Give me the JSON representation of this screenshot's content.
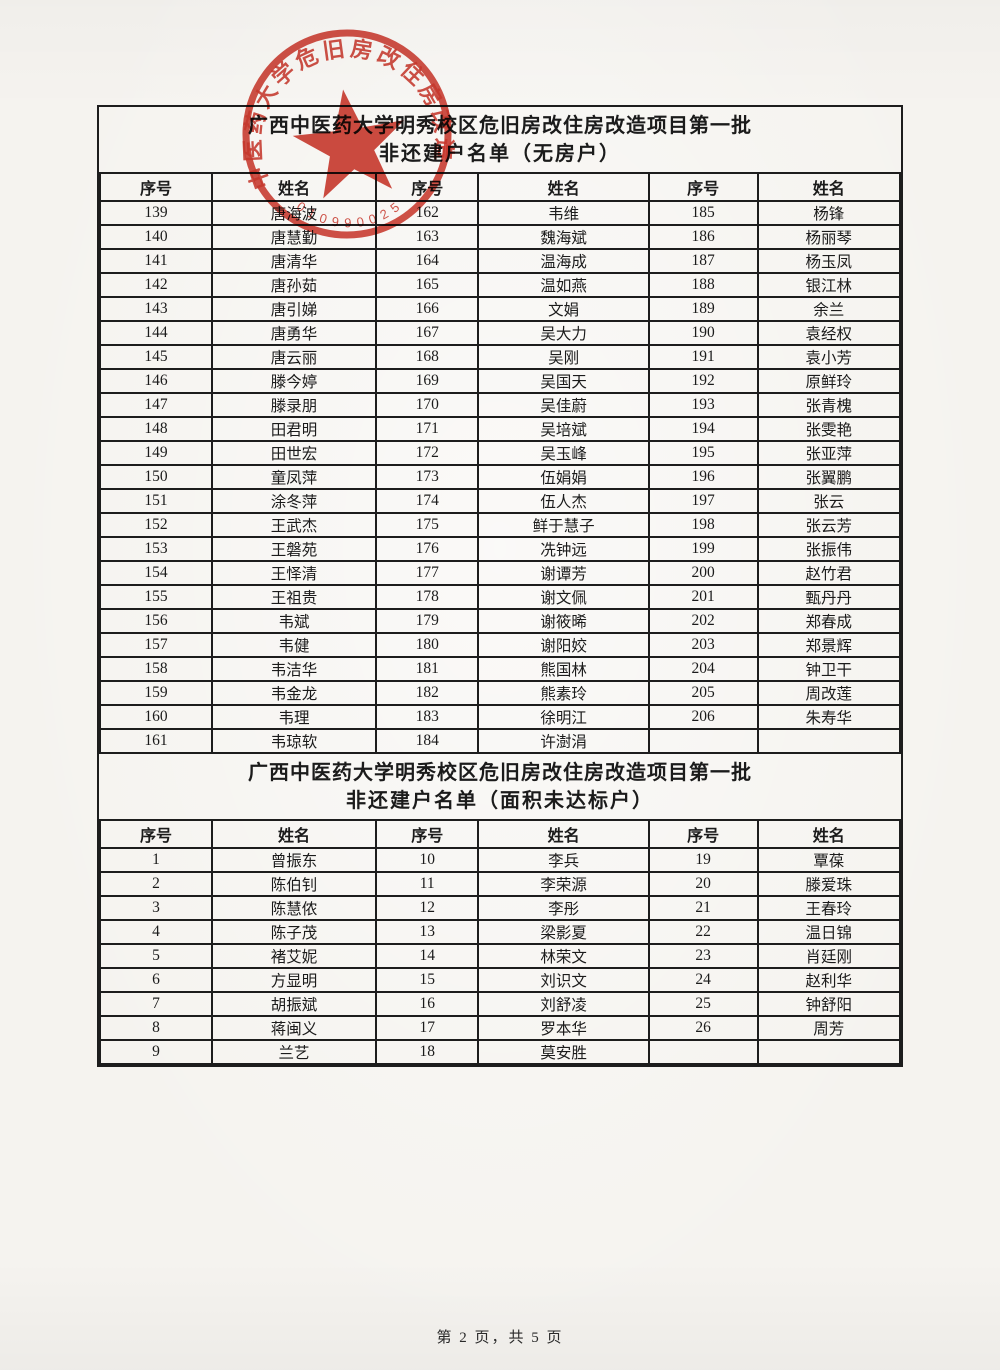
{
  "document": {
    "footer_text": "第 2 页，共 5 页"
  },
  "stamp": {
    "arc_text": "中医药大学危旧房改住房改造",
    "serial_digits": "010990025",
    "color": "#c8281c"
  },
  "section1": {
    "title_line1": "广西中医药大学明秀校区危旧房改住房改造项目第一批",
    "title_line2": "非还建户名单（无房户）",
    "col_headers": [
      "序号",
      "姓名",
      "序号",
      "姓名",
      "序号",
      "姓名"
    ],
    "rows": [
      [
        "139",
        "唐海波",
        "162",
        "韦维",
        "185",
        "杨锋"
      ],
      [
        "140",
        "唐慧勤",
        "163",
        "魏海斌",
        "186",
        "杨丽琴"
      ],
      [
        "141",
        "唐清华",
        "164",
        "温海成",
        "187",
        "杨玉凤"
      ],
      [
        "142",
        "唐孙茹",
        "165",
        "温如燕",
        "188",
        "银江林"
      ],
      [
        "143",
        "唐引娣",
        "166",
        "文娟",
        "189",
        "余兰"
      ],
      [
        "144",
        "唐勇华",
        "167",
        "吴大力",
        "190",
        "袁经权"
      ],
      [
        "145",
        "唐云丽",
        "168",
        "吴刚",
        "191",
        "袁小芳"
      ],
      [
        "146",
        "滕今婷",
        "169",
        "吴国天",
        "192",
        "原鲜玲"
      ],
      [
        "147",
        "滕录朋",
        "170",
        "吴佳蔚",
        "193",
        "张青槐"
      ],
      [
        "148",
        "田君明",
        "171",
        "吴培斌",
        "194",
        "张雯艳"
      ],
      [
        "149",
        "田世宏",
        "172",
        "吴玉峰",
        "195",
        "张亚萍"
      ],
      [
        "150",
        "童凤萍",
        "173",
        "伍娟娟",
        "196",
        "张翼鹏"
      ],
      [
        "151",
        "涂冬萍",
        "174",
        "伍人杰",
        "197",
        "张云"
      ],
      [
        "152",
        "王武杰",
        "175",
        "鲜于慧子",
        "198",
        "张云芳"
      ],
      [
        "153",
        "王磐苑",
        "176",
        "冼钟远",
        "199",
        "张振伟"
      ],
      [
        "154",
        "王怿清",
        "177",
        "谢谭芳",
        "200",
        "赵竹君"
      ],
      [
        "155",
        "王祖贵",
        "178",
        "谢文佩",
        "201",
        "甄丹丹"
      ],
      [
        "156",
        "韦斌",
        "179",
        "谢筱晞",
        "202",
        "郑春成"
      ],
      [
        "157",
        "韦健",
        "180",
        "谢阳姣",
        "203",
        "郑景辉"
      ],
      [
        "158",
        "韦洁华",
        "181",
        "熊国林",
        "204",
        "钟卫干"
      ],
      [
        "159",
        "韦金龙",
        "182",
        "熊素玲",
        "205",
        "周改莲"
      ],
      [
        "160",
        "韦理",
        "183",
        "徐明江",
        "206",
        "朱寿华"
      ],
      [
        "161",
        "韦琼软",
        "184",
        "许澍涓",
        "",
        ""
      ]
    ]
  },
  "section2": {
    "title_line1": "广西中医药大学明秀校区危旧房改住房改造项目第一批",
    "title_line2": "非还建户名单（面积未达标户）",
    "col_headers": [
      "序号",
      "姓名",
      "序号",
      "姓名",
      "序号",
      "姓名"
    ],
    "rows": [
      [
        "1",
        "曾振东",
        "10",
        "李兵",
        "19",
        "覃葆"
      ],
      [
        "2",
        "陈伯钊",
        "11",
        "李荣源",
        "20",
        "滕爱珠"
      ],
      [
        "3",
        "陈慧侬",
        "12",
        "李彤",
        "21",
        "王春玲"
      ],
      [
        "4",
        "陈子茂",
        "13",
        "梁影夏",
        "22",
        "温日锦"
      ],
      [
        "5",
        "褚艾妮",
        "14",
        "林荣文",
        "23",
        "肖廷刚"
      ],
      [
        "6",
        "方显明",
        "15",
        "刘识文",
        "24",
        "赵利华"
      ],
      [
        "7",
        "胡振斌",
        "16",
        "刘舒凌",
        "25",
        "钟舒阳"
      ],
      [
        "8",
        "蒋闽义",
        "17",
        "罗本华",
        "26",
        "周芳"
      ],
      [
        "9",
        "兰艺",
        "18",
        "莫安胜",
        "",
        ""
      ]
    ]
  }
}
